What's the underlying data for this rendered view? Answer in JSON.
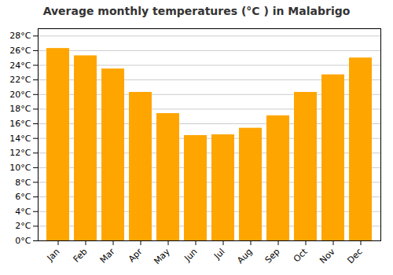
{
  "chart_data": {
    "type": "bar",
    "title": "Average monthly temperatures (°C ) in Malabrigo",
    "categories": [
      "Jan",
      "Feb",
      "Mar",
      "Apr",
      "May",
      "Jun",
      "Jul",
      "Aug",
      "Sep",
      "Oct",
      "Nov",
      "Dec"
    ],
    "values": [
      26.3,
      25.3,
      23.5,
      20.3,
      17.4,
      14.4,
      14.5,
      15.4,
      17.1,
      20.3,
      22.7,
      25.0
    ],
    "color": "#FFA500",
    "ylim": [
      0,
      29
    ],
    "yticks": [
      {
        "value": 0,
        "label": "0°C"
      },
      {
        "value": 2,
        "label": "2°C"
      },
      {
        "value": 4,
        "label": "4°C"
      },
      {
        "value": 6,
        "label": "6°C"
      },
      {
        "value": 8,
        "label": "8°C"
      },
      {
        "value": 10,
        "label": "10°C"
      },
      {
        "value": 12,
        "label": "12°C"
      },
      {
        "value": 14,
        "label": "14°C"
      },
      {
        "value": 16,
        "label": "16°C"
      },
      {
        "value": 18,
        "label": "18°C"
      },
      {
        "value": 20,
        "label": "20°C"
      },
      {
        "value": 22,
        "label": "22°C"
      },
      {
        "value": 24,
        "label": "24°C"
      },
      {
        "value": 26,
        "label": "26°C"
      },
      {
        "value": 28,
        "label": "28°C"
      }
    ],
    "grid": true
  }
}
